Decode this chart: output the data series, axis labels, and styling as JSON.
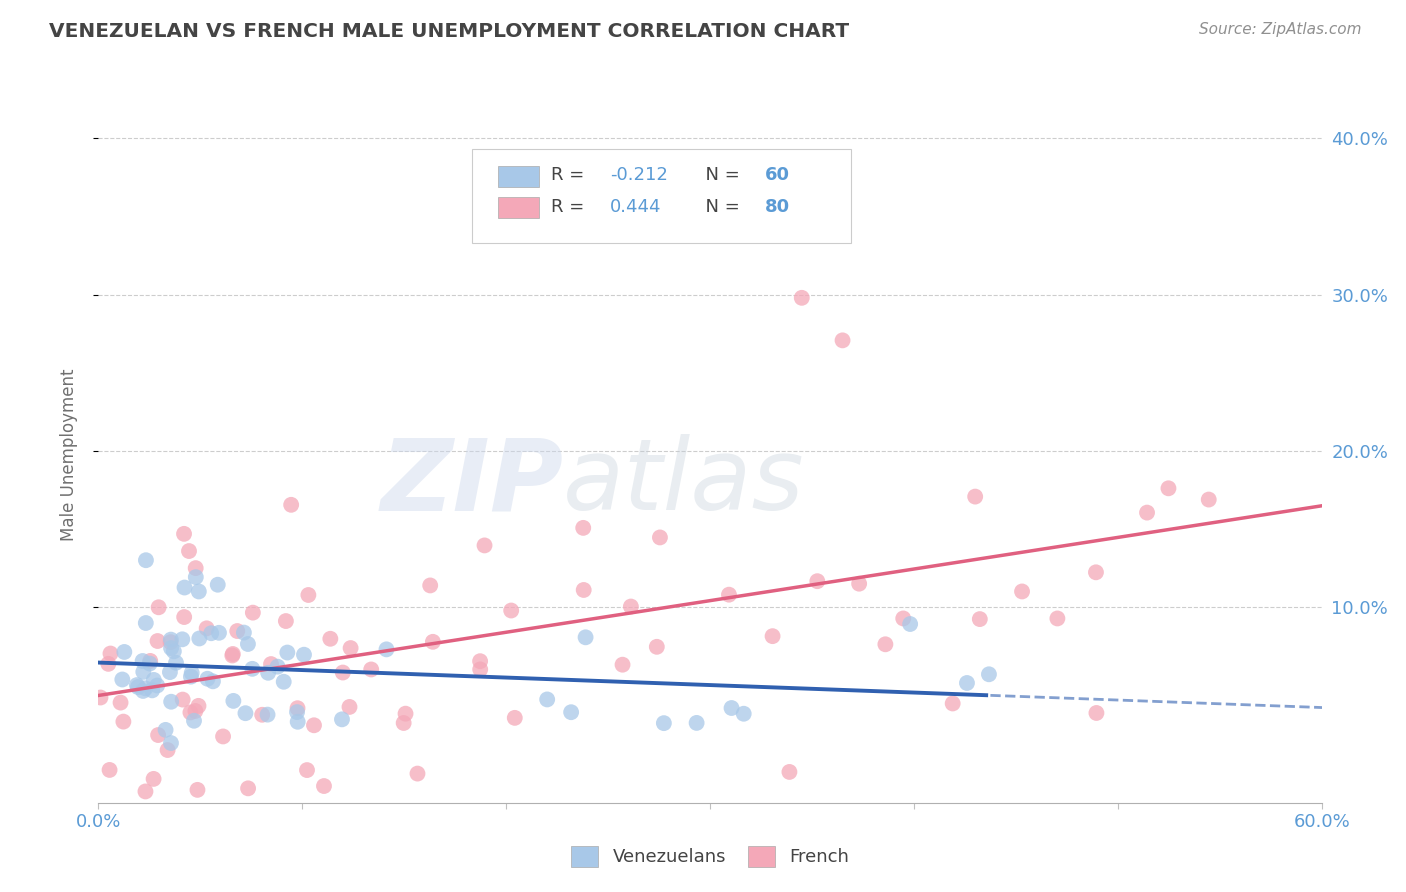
{
  "title": "VENEZUELAN VS FRENCH MALE UNEMPLOYMENT CORRELATION CHART",
  "source": "Source: ZipAtlas.com",
  "ylabel": "Male Unemployment",
  "watermark_zip": "ZIP",
  "watermark_atlas": "atlas",
  "xlim": [
    0.0,
    0.6
  ],
  "ylim": [
    -0.025,
    0.42
  ],
  "yticks": [
    0.1,
    0.2,
    0.3,
    0.4
  ],
  "ytick_labels": [
    "10.0%",
    "20.0%",
    "30.0%",
    "40.0%"
  ],
  "venezuelan_color": "#a8c8e8",
  "french_color": "#f4a8b8",
  "venezuelan_line_color": "#3060b0",
  "french_line_color": "#e06080",
  "venezuelan_R": -0.212,
  "venezuelan_N": 60,
  "french_R": 0.444,
  "french_N": 80,
  "background_color": "#ffffff",
  "grid_color": "#c8c8c8",
  "title_color": "#444444",
  "tick_color": "#5b9bd5",
  "legend_R_color": "#444444",
  "legend_N_color": "#5b9bd5",
  "watermark_zip_color": "#c8d8ec",
  "watermark_atlas_color": "#c8d0dc"
}
